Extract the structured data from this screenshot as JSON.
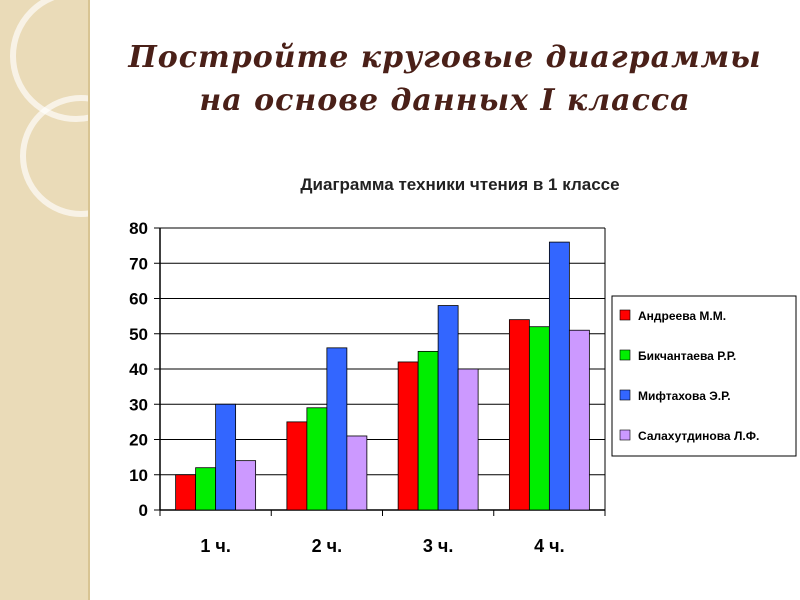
{
  "slide": {
    "title_line1": "Постройте  круговые  диаграммы",
    "title_line2": "на  основе  данных  I  класса"
  },
  "chart_data": {
    "type": "bar",
    "title": "Диаграмма техники чтения в 1 классе",
    "categories": [
      "1 ч.",
      "2 ч.",
      "3 ч.",
      "4 ч."
    ],
    "series": [
      {
        "name": "Андреева М.М.",
        "color": "#ff0000",
        "values": [
          10,
          25,
          42,
          54
        ]
      },
      {
        "name": "Бикчантаева Р.Р.",
        "color": "#00ee00",
        "values": [
          12,
          29,
          45,
          52
        ]
      },
      {
        "name": "Мифтахова Э.Р.",
        "color": "#3366ff",
        "values": [
          30,
          46,
          58,
          76
        ]
      },
      {
        "name": "Салахутдинова Л.Ф.",
        "color": "#cc99ff",
        "values": [
          14,
          21,
          40,
          51
        ]
      }
    ],
    "ylim": [
      0,
      80
    ],
    "yticks": [
      "0",
      "10",
      "20",
      "30",
      "40",
      "50",
      "60",
      "70",
      "80"
    ],
    "grid": true,
    "legend": "right"
  }
}
